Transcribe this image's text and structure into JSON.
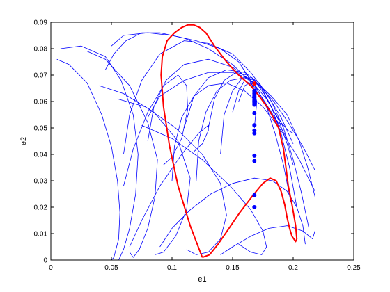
{
  "chart_data": {
    "type": "line",
    "title": "",
    "xlabel": "e1",
    "ylabel": "e2",
    "xlim": [
      0,
      0.25
    ],
    "ylim": [
      0,
      0.09
    ],
    "xticks": [
      "0",
      "0.05",
      "0.1",
      "0.15",
      "0.2",
      "0.25"
    ],
    "yticks": [
      "0",
      "0.01",
      "0.02",
      "0.03",
      "0.04",
      "0.05",
      "0.06",
      "0.07",
      "0.08",
      "0.09"
    ],
    "grid": false,
    "legend": "none",
    "colors": {
      "trajectories": "#0000ff",
      "boundary": "#ff0000",
      "points": "#0000ff"
    },
    "series": [
      {
        "type": "line",
        "color": "#0000ff",
        "x": [
          0.008,
          0.025,
          0.045,
          0.058,
          0.068,
          0.072,
          0.07,
          0.065,
          0.06,
          0.056
        ],
        "y": [
          0.08,
          0.081,
          0.077,
          0.068,
          0.055,
          0.04,
          0.025,
          0.012,
          0.004,
          0.0
        ]
      },
      {
        "type": "line",
        "color": "#0000ff",
        "x": [
          0.005,
          0.015,
          0.03,
          0.042,
          0.05,
          0.055,
          0.057,
          0.056,
          0.052,
          0.05
        ],
        "y": [
          0.076,
          0.074,
          0.067,
          0.055,
          0.043,
          0.03,
          0.018,
          0.008,
          0.001,
          0.0
        ]
      },
      {
        "type": "line",
        "color": "#0000ff",
        "x": [
          0.05,
          0.06,
          0.08,
          0.1,
          0.12,
          0.14,
          0.155,
          0.165,
          0.17,
          0.168
        ],
        "y": [
          0.081,
          0.085,
          0.086,
          0.085,
          0.083,
          0.08,
          0.075,
          0.068,
          0.06,
          0.05
        ]
      },
      {
        "type": "line",
        "color": "#0000ff",
        "x": [
          0.045,
          0.052,
          0.062,
          0.075,
          0.09,
          0.11,
          0.13,
          0.15,
          0.168,
          0.182,
          0.195
        ],
        "y": [
          0.072,
          0.078,
          0.083,
          0.086,
          0.086,
          0.084,
          0.08,
          0.074,
          0.066,
          0.056,
          0.046
        ]
      },
      {
        "type": "line",
        "color": "#0000ff",
        "x": [
          0.06,
          0.065,
          0.075,
          0.09,
          0.11,
          0.13,
          0.15,
          0.165,
          0.178,
          0.19,
          0.2
        ],
        "y": [
          0.04,
          0.055,
          0.068,
          0.078,
          0.083,
          0.082,
          0.078,
          0.071,
          0.063,
          0.054,
          0.044
        ]
      },
      {
        "type": "line",
        "color": "#0000ff",
        "x": [
          0.08,
          0.085,
          0.095,
          0.11,
          0.13,
          0.15,
          0.165,
          0.178,
          0.188,
          0.195,
          0.2
        ],
        "y": [
          0.045,
          0.058,
          0.068,
          0.074,
          0.076,
          0.073,
          0.068,
          0.061,
          0.053,
          0.044,
          0.036
        ]
      },
      {
        "type": "line",
        "color": "#0000ff",
        "x": [
          0.08,
          0.09,
          0.11,
          0.13,
          0.15,
          0.168,
          0.182,
          0.195,
          0.205,
          0.212,
          0.218
        ],
        "y": [
          0.054,
          0.062,
          0.068,
          0.071,
          0.071,
          0.068,
          0.062,
          0.055,
          0.045,
          0.035,
          0.024
        ]
      },
      {
        "type": "line",
        "color": "#0000ff",
        "x": [
          0.11,
          0.118,
          0.13,
          0.145,
          0.16,
          0.172,
          0.182,
          0.192,
          0.2,
          0.207,
          0.213
        ],
        "y": [
          0.05,
          0.062,
          0.069,
          0.072,
          0.071,
          0.067,
          0.06,
          0.05,
          0.038,
          0.025,
          0.012
        ]
      },
      {
        "type": "line",
        "color": "#0000ff",
        "x": [
          0.13,
          0.135,
          0.143,
          0.153,
          0.162,
          0.17,
          0.178,
          0.185,
          0.192,
          0.198
        ],
        "y": [
          0.05,
          0.061,
          0.068,
          0.071,
          0.07,
          0.065,
          0.058,
          0.048,
          0.036,
          0.022
        ]
      },
      {
        "type": "line",
        "color": "#0000ff",
        "x": [
          0.14,
          0.143,
          0.15,
          0.158,
          0.166,
          0.174,
          0.182,
          0.19,
          0.197,
          0.203
        ],
        "y": [
          0.04,
          0.055,
          0.064,
          0.069,
          0.069,
          0.065,
          0.058,
          0.048,
          0.035,
          0.02
        ]
      },
      {
        "type": "line",
        "color": "#0000ff",
        "x": [
          0.12,
          0.122,
          0.128,
          0.137,
          0.148,
          0.16,
          0.172,
          0.184,
          0.196,
          0.208,
          0.218
        ],
        "y": [
          0.03,
          0.045,
          0.056,
          0.064,
          0.068,
          0.069,
          0.066,
          0.06,
          0.052,
          0.043,
          0.034
        ]
      },
      {
        "type": "line",
        "color": "#0000ff",
        "x": [
          0.1,
          0.102,
          0.108,
          0.118,
          0.13,
          0.145,
          0.16,
          0.175,
          0.19,
          0.205,
          0.218
        ],
        "y": [
          0.03,
          0.043,
          0.054,
          0.062,
          0.066,
          0.067,
          0.064,
          0.058,
          0.049,
          0.038,
          0.026
        ]
      },
      {
        "type": "line",
        "color": "#0000ff",
        "x": [
          0.03,
          0.045,
          0.065,
          0.08,
          0.088,
          0.086,
          0.08,
          0.073,
          0.068,
          0.065
        ],
        "y": [
          0.079,
          0.076,
          0.066,
          0.052,
          0.038,
          0.024,
          0.012,
          0.004,
          0.001,
          0.003
        ]
      },
      {
        "type": "line",
        "color": "#0000ff",
        "x": [
          0.04,
          0.06,
          0.085,
          0.105,
          0.115,
          0.112,
          0.103,
          0.093,
          0.086
        ],
        "y": [
          0.066,
          0.063,
          0.056,
          0.045,
          0.031,
          0.019,
          0.009,
          0.003,
          0.002
        ]
      },
      {
        "type": "line",
        "color": "#0000ff",
        "x": [
          0.055,
          0.078,
          0.103,
          0.125,
          0.14,
          0.145,
          0.14,
          0.13,
          0.12,
          0.112
        ],
        "y": [
          0.061,
          0.058,
          0.05,
          0.04,
          0.029,
          0.017,
          0.008,
          0.003,
          0.002,
          0.004
        ]
      },
      {
        "type": "line",
        "color": "#0000ff",
        "x": [
          0.075,
          0.1,
          0.125,
          0.148,
          0.165,
          0.175,
          0.178,
          0.174,
          0.165,
          0.155
        ],
        "y": [
          0.051,
          0.046,
          0.038,
          0.028,
          0.019,
          0.011,
          0.005,
          0.002,
          0.003,
          0.006
        ]
      },
      {
        "type": "line",
        "color": "#0000ff",
        "x": [
          0.06,
          0.068,
          0.08,
          0.093,
          0.105,
          0.112,
          0.113,
          0.108,
          0.1,
          0.093
        ],
        "y": [
          0.028,
          0.042,
          0.056,
          0.066,
          0.07,
          0.066,
          0.057,
          0.046,
          0.039,
          0.036
        ]
      },
      {
        "type": "line",
        "color": "#0000ff",
        "x": [
          0.065,
          0.075,
          0.09,
          0.108,
          0.122,
          0.13,
          0.13,
          0.125,
          0.118
        ],
        "y": [
          0.005,
          0.015,
          0.028,
          0.04,
          0.048,
          0.051,
          0.049,
          0.044,
          0.041
        ]
      },
      {
        "type": "line",
        "color": "#0000ff",
        "x": [
          0.09,
          0.1,
          0.115,
          0.132,
          0.15,
          0.168,
          0.183,
          0.195,
          0.203,
          0.208,
          0.21
        ],
        "y": [
          0.005,
          0.012,
          0.019,
          0.025,
          0.029,
          0.031,
          0.03,
          0.026,
          0.02,
          0.013,
          0.006
        ]
      },
      {
        "type": "line",
        "color": "#0000ff",
        "x": [
          0.14,
          0.15,
          0.165,
          0.18,
          0.195,
          0.208,
          0.216,
          0.218
        ],
        "y": [
          0.002,
          0.005,
          0.009,
          0.012,
          0.013,
          0.011,
          0.008,
          0.011
        ]
      },
      {
        "type": "line",
        "color": "#0000ff",
        "x": [
          0.15,
          0.155,
          0.16,
          0.167,
          0.175,
          0.182,
          0.188,
          0.192
        ],
        "y": [
          0.056,
          0.064,
          0.068,
          0.066,
          0.06,
          0.055,
          0.052,
          0.051
        ]
      },
      {
        "type": "line",
        "color": "#0000ff",
        "x": [
          0.155,
          0.16,
          0.168,
          0.176,
          0.183,
          0.19,
          0.196,
          0.2
        ],
        "y": [
          0.06,
          0.066,
          0.068,
          0.063,
          0.057,
          0.052,
          0.049,
          0.048
        ]
      },
      {
        "type": "line",
        "color": "#ff0000",
        "x": [
          0.125,
          0.115,
          0.105,
          0.098,
          0.093,
          0.091,
          0.092,
          0.096,
          0.102,
          0.108,
          0.113,
          0.118,
          0.123,
          0.128,
          0.135,
          0.145,
          0.155,
          0.165,
          0.172,
          0.18,
          0.188,
          0.192,
          0.194,
          0.196,
          0.199,
          0.202,
          0.203,
          0.202,
          0.199,
          0.197,
          0.195,
          0.193,
          0.19,
          0.186,
          0.181,
          0.175,
          0.166,
          0.156,
          0.147,
          0.138,
          0.131,
          0.125
        ],
        "y": [
          0.001,
          0.013,
          0.028,
          0.043,
          0.058,
          0.07,
          0.077,
          0.083,
          0.086,
          0.088,
          0.089,
          0.089,
          0.088,
          0.086,
          0.081,
          0.075,
          0.07,
          0.066,
          0.062,
          0.057,
          0.05,
          0.042,
          0.035,
          0.028,
          0.021,
          0.013,
          0.008,
          0.007,
          0.009,
          0.012,
          0.016,
          0.021,
          0.026,
          0.03,
          0.031,
          0.029,
          0.024,
          0.018,
          0.012,
          0.006,
          0.002,
          0.001
        ]
      }
    ],
    "points": {
      "color": "#0000ff",
      "x": [
        0.168,
        0.168,
        0.168,
        0.168,
        0.168,
        0.168,
        0.168,
        0.168,
        0.168,
        0.168,
        0.168,
        0.168,
        0.168,
        0.168,
        0.168,
        0.168,
        0.168,
        0.168,
        0.168,
        0.168
      ],
      "y": [
        0.0635,
        0.0625,
        0.0615,
        0.0605,
        0.06,
        0.0595,
        0.0588,
        0.062,
        0.063,
        0.061,
        0.0556,
        0.051,
        0.049,
        0.048,
        0.0395,
        0.0375,
        0.0245,
        0.02,
        0.064,
        0.06
      ]
    },
    "red_point": {
      "x": 0.168,
      "y": 0.0668,
      "color": "#ff0000"
    }
  }
}
